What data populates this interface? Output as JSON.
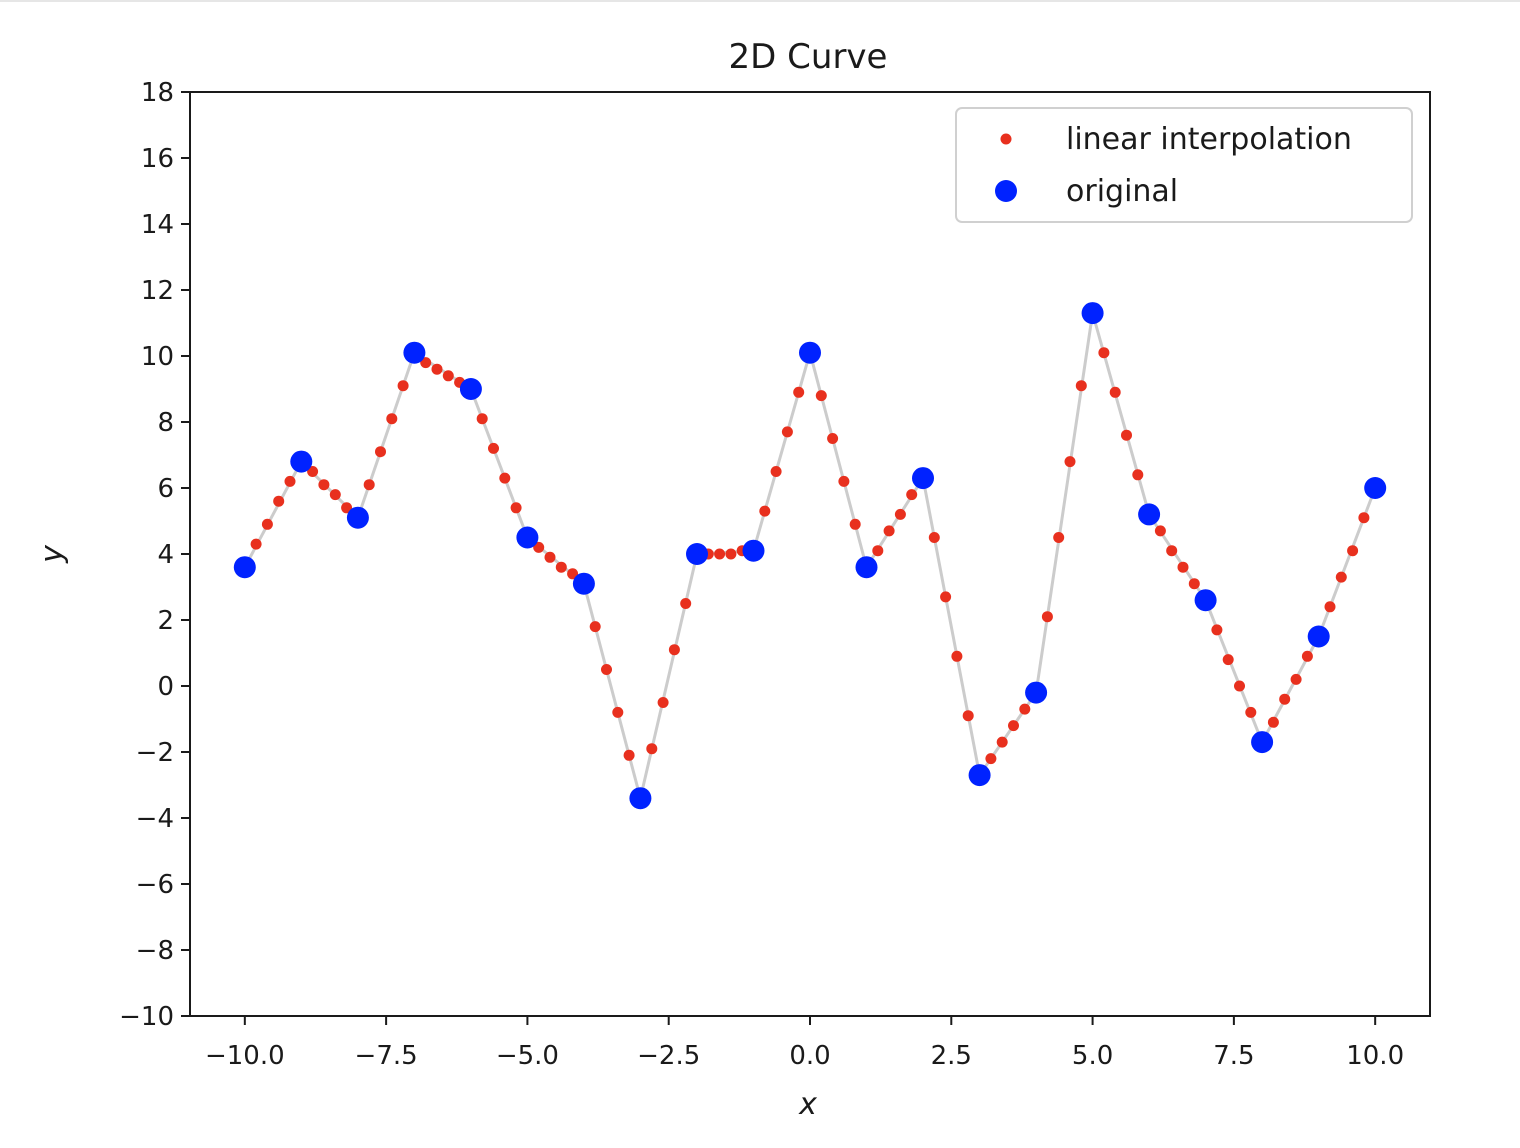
{
  "chart_data": {
    "type": "scatter",
    "title": "2D Curve",
    "xlabel": "x",
    "ylabel": "y",
    "xlim": [
      -10.97,
      10.97
    ],
    "ylim": [
      -10,
      18
    ],
    "xticks": [
      -10.0,
      -7.5,
      -5.0,
      -2.5,
      0.0,
      2.5,
      5.0,
      7.5,
      10.0
    ],
    "xtick_labels": [
      "−10.0",
      "−7.5",
      "−5.0",
      "−2.5",
      "0.0",
      "2.5",
      "5.0",
      "7.5",
      "10.0"
    ],
    "yticks": [
      -10,
      -8,
      -6,
      -4,
      -2,
      0,
      2,
      4,
      6,
      8,
      10,
      12,
      14,
      16,
      18
    ],
    "ytick_labels": [
      "−10",
      "−8",
      "−6",
      "−4",
      "−2",
      "0",
      "2",
      "4",
      "6",
      "8",
      "10",
      "12",
      "14",
      "16",
      "18"
    ],
    "legend": {
      "placement": "top-right"
    },
    "grid": false,
    "series": [
      {
        "name": "linear interpolation",
        "style": "small-dots",
        "color": "#e8301e",
        "x": [
          -9.8,
          -9.6,
          -9.4,
          -9.2,
          -9.0,
          -8.8,
          -8.6,
          -8.4,
          -8.2,
          -8.0,
          -7.8,
          -7.6,
          -7.4,
          -7.2,
          -7.0,
          -6.8,
          -6.6,
          -6.4,
          -6.2,
          -6.0,
          -5.8,
          -5.6,
          -5.4,
          -5.2,
          -5.0,
          -4.8,
          -4.6,
          -4.4,
          -4.2,
          -4.0,
          -3.8,
          -3.6,
          -3.4,
          -3.2,
          -3.0,
          -2.8,
          -2.6,
          -2.4,
          -2.2,
          -2.0,
          -1.8,
          -1.6,
          -1.4,
          -1.2,
          -1.0,
          -0.8,
          -0.6,
          -0.4,
          -0.2,
          0.0,
          0.2,
          0.4,
          0.6,
          0.8,
          1.0,
          1.2,
          1.4,
          1.6,
          1.8,
          2.0,
          2.2,
          2.4,
          2.6,
          2.8,
          3.0,
          3.2,
          3.4,
          3.6,
          3.8,
          4.0,
          4.2,
          4.4,
          4.6,
          4.8,
          5.0,
          5.2,
          5.4,
          5.6,
          5.8,
          6.0,
          6.2,
          6.4,
          6.6,
          6.8,
          7.0,
          7.2,
          7.4,
          7.6,
          7.8,
          8.0,
          8.2,
          8.4,
          8.6,
          8.8,
          9.0,
          9.2,
          9.4,
          9.6,
          9.8
        ],
        "y": [
          4.3,
          4.9,
          5.6,
          6.2,
          6.8,
          6.5,
          6.1,
          5.8,
          5.4,
          5.1,
          6.1,
          7.1,
          8.1,
          9.1,
          10.1,
          9.8,
          9.6,
          9.4,
          9.2,
          9.0,
          8.1,
          7.2,
          6.3,
          5.4,
          4.5,
          4.2,
          3.9,
          3.6,
          3.4,
          3.1,
          1.8,
          0.5,
          -0.8,
          -2.1,
          -3.4,
          -1.9,
          -0.5,
          1.1,
          2.5,
          4.0,
          4.0,
          4.0,
          4.0,
          4.1,
          4.1,
          5.3,
          6.5,
          7.7,
          8.9,
          10.1,
          8.8,
          7.5,
          6.2,
          4.9,
          3.6,
          4.1,
          4.7,
          5.2,
          5.8,
          6.3,
          4.5,
          2.7,
          0.9,
          -0.9,
          -2.7,
          -2.2,
          -1.7,
          -1.2,
          -0.7,
          -0.2,
          2.1,
          4.5,
          6.8,
          9.1,
          11.3,
          10.1,
          8.9,
          7.6,
          6.4,
          5.2,
          4.7,
          4.1,
          3.6,
          3.1,
          2.6,
          1.7,
          0.8,
          0.0,
          -0.8,
          -1.7,
          -1.1,
          -0.4,
          0.2,
          0.9,
          1.5,
          2.4,
          3.3,
          4.1,
          5.1
        ]
      },
      {
        "name": "original",
        "style": "large-dots",
        "color": "#0022ff",
        "x": [
          -10,
          -9,
          -8,
          -7,
          -6,
          -5,
          -4,
          -3,
          -2,
          -1,
          0,
          1,
          2,
          3,
          4,
          5,
          6,
          7,
          8,
          9,
          10
        ],
        "y": [
          3.6,
          6.8,
          5.1,
          10.1,
          9.0,
          4.5,
          3.1,
          -3.4,
          4.0,
          4.1,
          10.1,
          3.6,
          6.3,
          -2.7,
          -0.2,
          11.3,
          5.2,
          2.6,
          -1.7,
          1.5,
          6.0
        ]
      }
    ],
    "connector_color": "#cccccc"
  }
}
